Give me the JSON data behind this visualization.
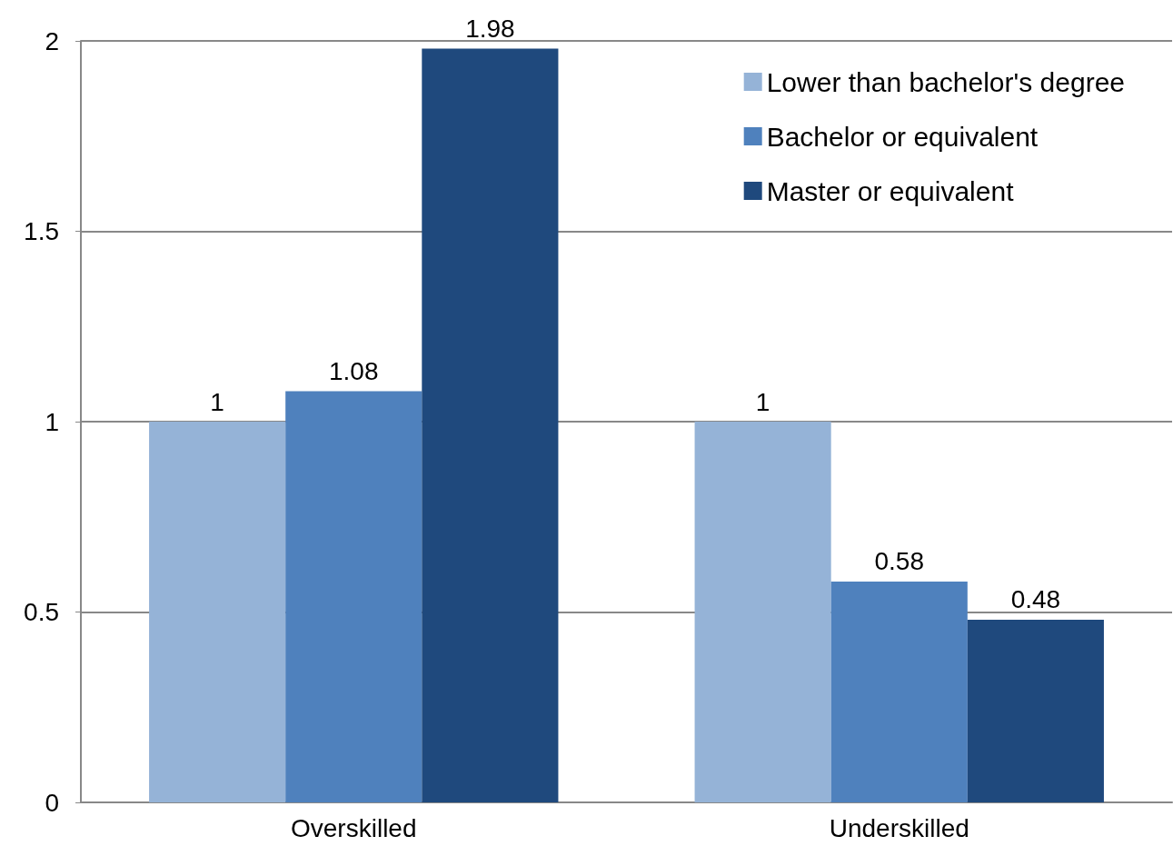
{
  "chart_data": {
    "type": "bar",
    "categories": [
      "Overskilled",
      "Underskilled"
    ],
    "series": [
      {
        "name": "Lower than bachelor's degree",
        "color": "#95b3d7",
        "values": [
          1,
          1
        ]
      },
      {
        "name": "Bachelor or equivalent",
        "color": "#4f81bd",
        "values": [
          1.08,
          0.58
        ]
      },
      {
        "name": "Master or equivalent",
        "color": "#1f497d",
        "values": [
          1.98,
          0.48
        ]
      }
    ],
    "ylim": [
      0,
      2
    ],
    "yticks": [
      0,
      0.5,
      1,
      1.5,
      2
    ],
    "grid": "y",
    "legend": "top right",
    "data_labels": true
  }
}
